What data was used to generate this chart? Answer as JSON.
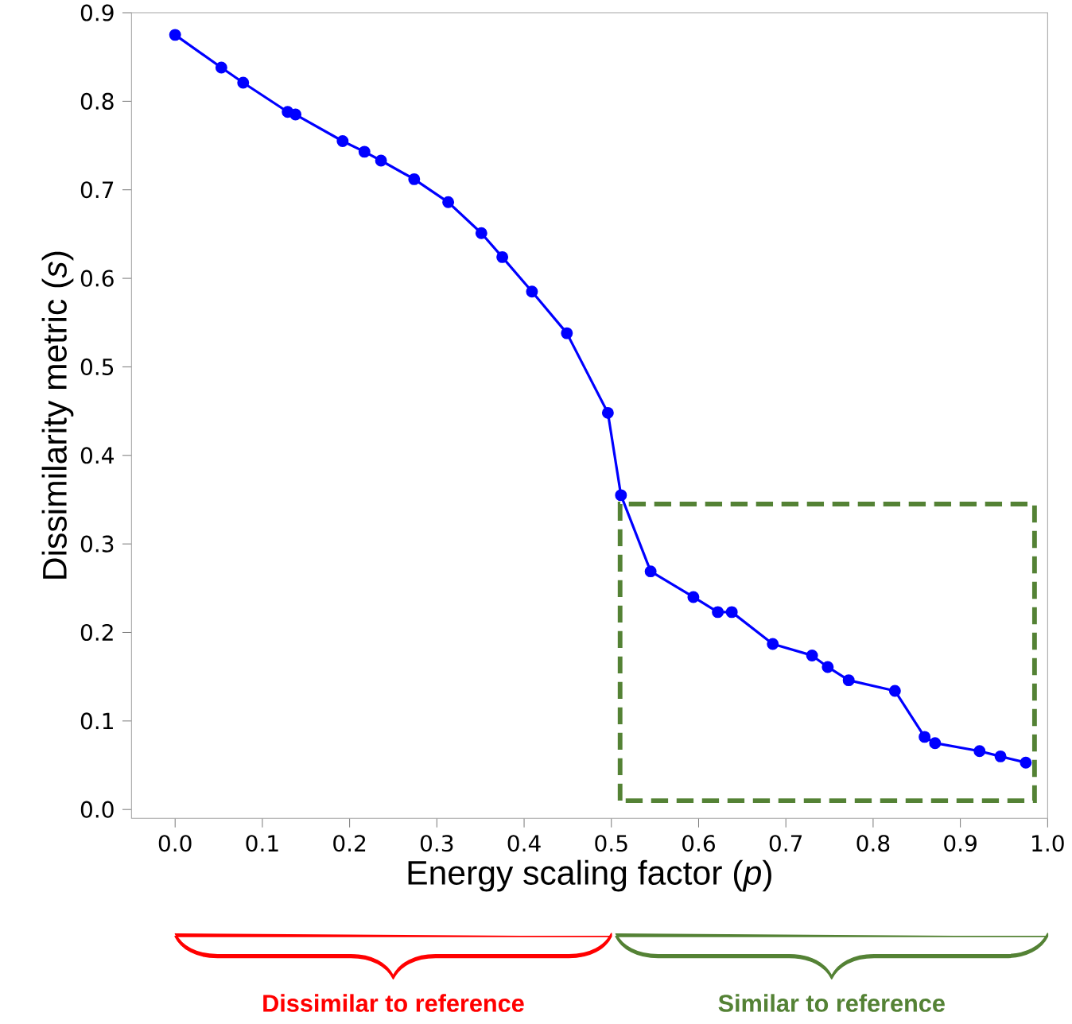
{
  "chart_data": {
    "type": "line",
    "xlabel": "Energy scaling factor (*p*)",
    "ylabel": "Dissimilarity metric (*s*)",
    "x": [
      0.0,
      0.053,
      0.078,
      0.129,
      0.138,
      0.192,
      0.217,
      0.236,
      0.274,
      0.313,
      0.351,
      0.375,
      0.409,
      0.449,
      0.496,
      0.511,
      0.545,
      0.594,
      0.622,
      0.638,
      0.685,
      0.73,
      0.748,
      0.772,
      0.825,
      0.859,
      0.871,
      0.922,
      0.946,
      0.975
    ],
    "series": [
      {
        "color": "#0000ff",
        "values": [
          0.875,
          0.838,
          0.821,
          0.788,
          0.785,
          0.755,
          0.743,
          0.733,
          0.712,
          0.686,
          0.651,
          0.624,
          0.585,
          0.538,
          0.448,
          0.355,
          0.269,
          0.24,
          0.223,
          0.223,
          0.187,
          0.174,
          0.161,
          0.146,
          0.134,
          0.082,
          0.075,
          0.066,
          0.06,
          0.053
        ]
      }
    ],
    "xlim": [
      -0.05,
      1.0
    ],
    "ylim": [
      -0.01,
      0.9
    ],
    "xticks": [
      {
        "value": 0.0,
        "label": "0.0"
      },
      0.1,
      0.2,
      0.3,
      0.4,
      0.5,
      0.6,
      0.7,
      0.8,
      0.9,
      {
        "value": 1.0,
        "label": "1.0"
      }
    ],
    "yticks": [
      {
        "value": 0.0,
        "label": "0.0"
      },
      0.1,
      0.2,
      0.3,
      0.4,
      0.5,
      0.6,
      0.7,
      0.8,
      0.9
    ],
    "marker": "circle",
    "line_style": "solid",
    "grid": false,
    "annotations": [
      "Dissimilar to reference",
      "Similar to reference"
    ]
  }
}
